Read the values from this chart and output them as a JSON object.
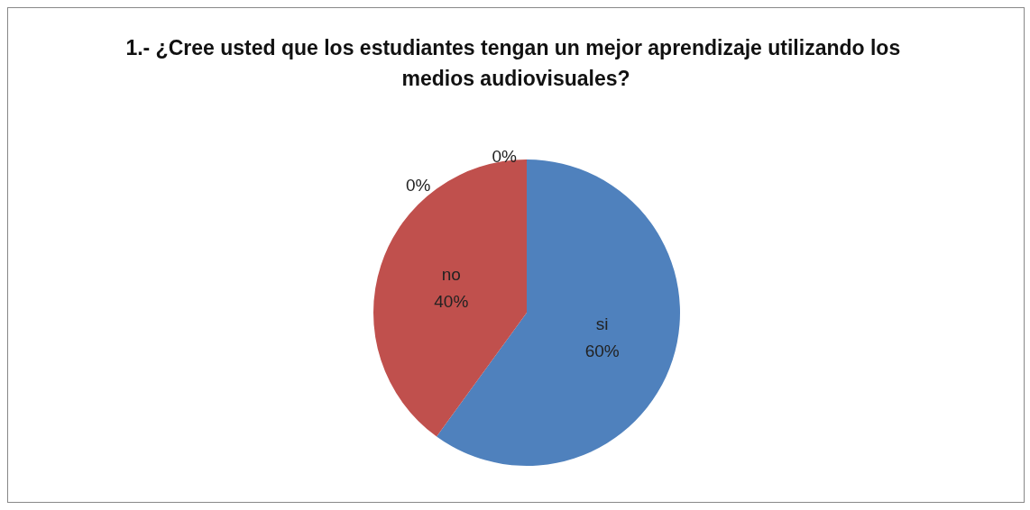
{
  "chart_data": {
    "type": "pie",
    "title": "1.- ¿Cree usted que los estudiantes tengan un mejor aprendizaje utilizando los medios audiovisuales?",
    "categories": [
      "si",
      "no",
      null,
      null
    ],
    "values": [
      60,
      40,
      0,
      0
    ],
    "colors": [
      "#4f81bd",
      "#c0504d",
      "#9bbb59",
      "#8064a2"
    ],
    "value_labels": [
      "60%",
      "40%",
      "0%",
      "0%"
    ],
    "legend": false
  }
}
